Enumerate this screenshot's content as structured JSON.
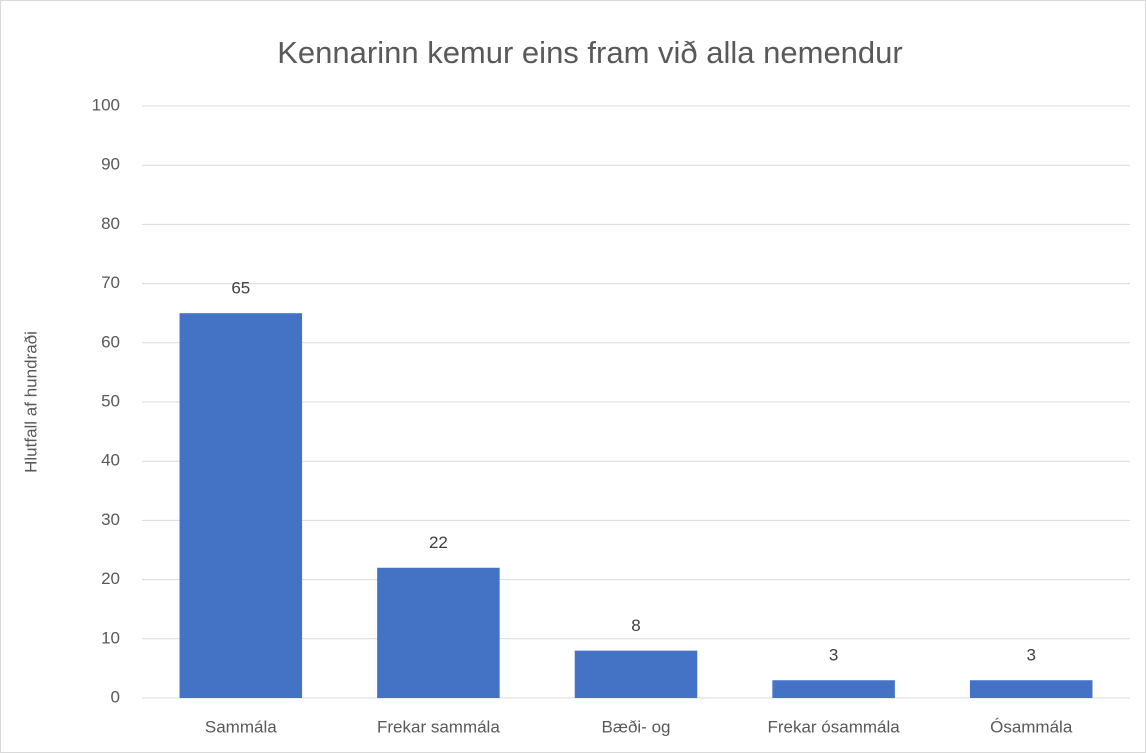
{
  "chart_data": {
    "type": "bar",
    "title": "Kennarinn kemur eins fram við alla nemendur",
    "ylabel": "Hlutfall af hundraði",
    "categories": [
      "Sammála",
      "Frekar sammála",
      "Bæði- og",
      "Frekar ósammála",
      "Ósammála"
    ],
    "values": [
      65,
      22,
      8,
      3,
      3
    ],
    "color": "#4472c4",
    "ylim": [
      0,
      100
    ],
    "yticks": [
      0,
      10,
      20,
      30,
      40,
      50,
      60,
      70,
      80,
      90,
      100
    ],
    "grid": true
  }
}
